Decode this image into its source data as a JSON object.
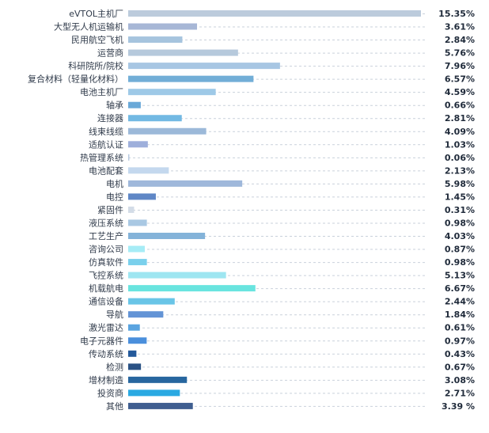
{
  "chart_data": {
    "type": "bar",
    "orientation": "horizontal",
    "title": "",
    "xlabel": "",
    "ylabel": "",
    "xlim": [
      0,
      15.35
    ],
    "grid": "dashed leader lines per row",
    "legend": "none",
    "categories": [
      "eVTOL主机厂",
      "大型无人机运输机",
      "民用航空飞机",
      "运营商",
      "科研院所/院校",
      "复合材料（轻量化材料）",
      "电池主机厂",
      "轴承",
      "连接器",
      "线束线缆",
      "适航认证",
      "热管理系统",
      "电池配套",
      "电机",
      "电控",
      "紧固件",
      "液压系统",
      "工艺生产",
      "咨询公司",
      "仿真软件",
      "飞控系统",
      "机载航电",
      "通信设备",
      "导航",
      "激光雷达",
      "电子元器件",
      "传动系统",
      "检测",
      "增材制造",
      "投资商",
      "其他"
    ],
    "values": [
      15.35,
      3.61,
      2.84,
      5.76,
      7.96,
      6.57,
      4.59,
      0.66,
      2.81,
      4.09,
      1.03,
      0.06,
      2.13,
      5.98,
      1.45,
      0.31,
      0.98,
      4.03,
      0.87,
      0.98,
      5.13,
      6.67,
      2.44,
      1.84,
      0.61,
      0.97,
      0.43,
      0.67,
      3.08,
      2.71,
      3.39
    ],
    "value_labels": [
      "15.35%",
      "3.61%",
      "2.84%",
      "5.76%",
      "7.96%",
      "6.57%",
      "4.59%",
      "0.66%",
      "2.81%",
      "4.09%",
      "1.03%",
      "0.06%",
      "2.13%",
      "5.98%",
      "1.45%",
      "0.31%",
      "0.98%",
      "4.03%",
      "0.87%",
      "0.98%",
      "5.13%",
      "6.67%",
      "2.44%",
      "1.84%",
      "0.61%",
      "0.97%",
      "0.43%",
      "0.67%",
      "3.08%",
      "2.71%",
      "3.39 %"
    ],
    "colors": [
      "#bccbdc",
      "#a7b7d6",
      "#a6c4de",
      "#b6c9dc",
      "#a7c6e3",
      "#72aed7",
      "#9ec9e7",
      "#6aa9d8",
      "#72b9e3",
      "#9cb9d9",
      "#9eafdb",
      "#b7c9e0",
      "#c4d8ee",
      "#9fb8db",
      "#5f87c6",
      "#d3dce7",
      "#a9c8e3",
      "#84b3d9",
      "#a6ecf6",
      "#7ad0ec",
      "#9ee6f1",
      "#69e4df",
      "#69c5e7",
      "#6394d6",
      "#5aa4e0",
      "#4a8fdc",
      "#23599a",
      "#2a5285",
      "#27669f",
      "#2aa9e2",
      "#3f5e90"
    ],
    "grid_color": "#c9d1db"
  }
}
